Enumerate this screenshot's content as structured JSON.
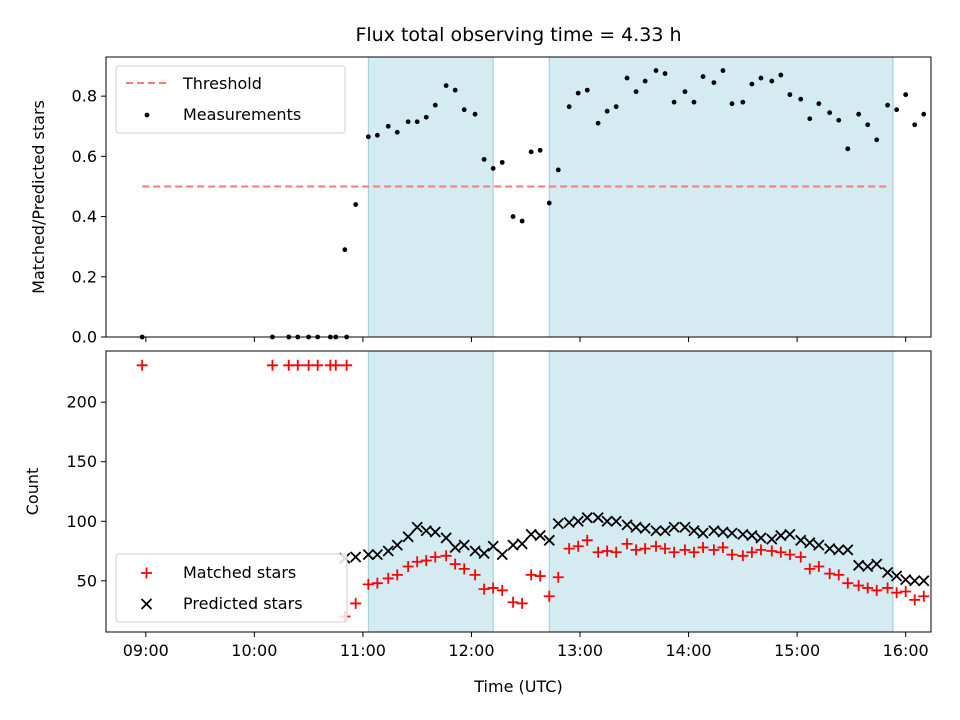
{
  "chart_data": [
    {
      "type": "scatter",
      "title": "Flux total observing time = 4.33 h",
      "ylabel": "Matched/Predicted stars",
      "xlim": [
        "08:38",
        "16:14"
      ],
      "ylim": [
        0,
        0.93
      ],
      "xticks": [
        "09:00",
        "10:00",
        "11:00",
        "12:00",
        "13:00",
        "14:00",
        "15:00",
        "16:00"
      ],
      "yticks": [
        "0.0",
        "0.2",
        "0.4",
        "0.6",
        "0.8"
      ],
      "legend": {
        "position": "top-left",
        "entries": [
          "Threshold",
          "Measurements"
        ]
      },
      "threshold": {
        "name": "Threshold",
        "y": 0.5,
        "x_range": [
          "08:58",
          "15:50"
        ],
        "color": "#f87a7a"
      },
      "shaded_intervals": [
        [
          "11:03",
          "12:12"
        ],
        [
          "12:43",
          "15:53"
        ]
      ],
      "series": [
        {
          "name": "Measurements",
          "color": "#000000",
          "points": [
            [
              "08:58",
              0.0
            ],
            [
              "10:10",
              0.0
            ],
            [
              "10:19",
              0.0
            ],
            [
              "10:24",
              0.0
            ],
            [
              "10:30",
              0.0
            ],
            [
              "10:35",
              0.0
            ],
            [
              "10:42",
              0.0
            ],
            [
              "10:45",
              0.0
            ],
            [
              "10:51",
              0.0
            ],
            [
              "10:50",
              0.29
            ],
            [
              "10:56",
              0.44
            ],
            [
              "11:03",
              0.665
            ],
            [
              "11:08",
              0.67
            ],
            [
              "11:14",
              0.7
            ],
            [
              "11:19",
              0.68
            ],
            [
              "11:25",
              0.715
            ],
            [
              "11:30",
              0.715
            ],
            [
              "11:35",
              0.73
            ],
            [
              "11:40",
              0.77
            ],
            [
              "11:46",
              0.835
            ],
            [
              "11:51",
              0.82
            ],
            [
              "11:56",
              0.755
            ],
            [
              "12:02",
              0.74
            ],
            [
              "12:07",
              0.59
            ],
            [
              "12:12",
              0.56
            ],
            [
              "12:17",
              0.58
            ],
            [
              "12:23",
              0.4
            ],
            [
              "12:28",
              0.385
            ],
            [
              "12:33",
              0.615
            ],
            [
              "12:38",
              0.62
            ],
            [
              "12:43",
              0.445
            ],
            [
              "12:48",
              0.555
            ],
            [
              "12:54",
              0.765
            ],
            [
              "12:59",
              0.81
            ],
            [
              "13:04",
              0.82
            ],
            [
              "13:10",
              0.71
            ],
            [
              "13:15",
              0.75
            ],
            [
              "13:20",
              0.765
            ],
            [
              "13:26",
              0.86
            ],
            [
              "13:31",
              0.815
            ],
            [
              "13:36",
              0.85
            ],
            [
              "13:42",
              0.885
            ],
            [
              "13:47",
              0.875
            ],
            [
              "13:52",
              0.78
            ],
            [
              "13:58",
              0.815
            ],
            [
              "14:03",
              0.78
            ],
            [
              "14:08",
              0.865
            ],
            [
              "14:14",
              0.845
            ],
            [
              "14:19",
              0.885
            ],
            [
              "14:24",
              0.775
            ],
            [
              "14:30",
              0.78
            ],
            [
              "14:35",
              0.84
            ],
            [
              "14:40",
              0.86
            ],
            [
              "14:46",
              0.85
            ],
            [
              "14:51",
              0.87
            ],
            [
              "14:56",
              0.805
            ],
            [
              "15:02",
              0.79
            ],
            [
              "15:07",
              0.725
            ],
            [
              "15:12",
              0.775
            ],
            [
              "15:18",
              0.745
            ],
            [
              "15:23",
              0.72
            ],
            [
              "15:28",
              0.625
            ],
            [
              "15:34",
              0.74
            ],
            [
              "15:39",
              0.705
            ],
            [
              "15:44",
              0.655
            ],
            [
              "15:50",
              0.77
            ],
            [
              "15:55",
              0.755
            ],
            [
              "16:00",
              0.805
            ],
            [
              "16:05",
              0.705
            ],
            [
              "16:10",
              0.74
            ]
          ]
        }
      ]
    },
    {
      "type": "scatter",
      "xlabel": "Time (UTC)",
      "ylabel": "Count",
      "xlim": [
        "08:38",
        "16:14"
      ],
      "ylim": [
        7,
        243
      ],
      "xticks": [
        "09:00",
        "10:00",
        "11:00",
        "12:00",
        "13:00",
        "14:00",
        "15:00",
        "16:00"
      ],
      "yticks": [
        "50",
        "100",
        "150",
        "200"
      ],
      "legend": {
        "position": "bottom-left",
        "entries": [
          "Matched stars",
          "Predicted stars"
        ]
      },
      "shaded_intervals": [
        [
          "11:03",
          "12:12"
        ],
        [
          "12:43",
          "15:53"
        ]
      ],
      "series": [
        {
          "name": "Matched stars",
          "marker": "plus",
          "color": "#ff0000",
          "points": [
            [
              "08:58",
              231
            ],
            [
              "10:10",
              231
            ],
            [
              "10:19",
              231
            ],
            [
              "10:24",
              231
            ],
            [
              "10:30",
              231
            ],
            [
              "10:35",
              231
            ],
            [
              "10:42",
              231
            ],
            [
              "10:45",
              231
            ],
            [
              "10:51",
              231
            ],
            [
              "10:50",
              20
            ],
            [
              "10:56",
              31
            ],
            [
              "11:03",
              47
            ],
            [
              "11:08",
              48
            ],
            [
              "11:14",
              52
            ],
            [
              "11:19",
              55
            ],
            [
              "11:25",
              62
            ],
            [
              "11:30",
              66
            ],
            [
              "11:35",
              67
            ],
            [
              "11:40",
              70
            ],
            [
              "11:46",
              71
            ],
            [
              "11:51",
              64
            ],
            [
              "11:56",
              60
            ],
            [
              "12:02",
              55
            ],
            [
              "12:07",
              43
            ],
            [
              "12:12",
              44
            ],
            [
              "12:17",
              42
            ],
            [
              "12:23",
              32
            ],
            [
              "12:28",
              31
            ],
            [
              "12:33",
              55
            ],
            [
              "12:38",
              54
            ],
            [
              "12:43",
              37
            ],
            [
              "12:48",
              53
            ],
            [
              "12:54",
              77
            ],
            [
              "12:59",
              79
            ],
            [
              "13:04",
              84
            ],
            [
              "13:10",
              74
            ],
            [
              "13:15",
              75
            ],
            [
              "13:20",
              74
            ],
            [
              "13:26",
              81
            ],
            [
              "13:31",
              76
            ],
            [
              "13:36",
              77
            ],
            [
              "13:42",
              79
            ],
            [
              "13:47",
              77
            ],
            [
              "13:52",
              74
            ],
            [
              "13:58",
              76
            ],
            [
              "14:03",
              74
            ],
            [
              "14:08",
              78
            ],
            [
              "14:14",
              76
            ],
            [
              "14:19",
              78
            ],
            [
              "14:24",
              72
            ],
            [
              "14:30",
              71
            ],
            [
              "14:35",
              74
            ],
            [
              "14:40",
              76
            ],
            [
              "14:46",
              75
            ],
            [
              "14:51",
              74
            ],
            [
              "14:56",
              72
            ],
            [
              "15:02",
              70
            ],
            [
              "15:07",
              60
            ],
            [
              "15:12",
              62
            ],
            [
              "15:18",
              56
            ],
            [
              "15:23",
              55
            ],
            [
              "15:28",
              48
            ],
            [
              "15:34",
              46
            ],
            [
              "15:39",
              44
            ],
            [
              "15:44",
              42
            ],
            [
              "15:50",
              44
            ],
            [
              "15:55",
              40
            ],
            [
              "16:00",
              41
            ],
            [
              "16:05",
              34
            ],
            [
              "16:10",
              37
            ]
          ]
        },
        {
          "name": "Predicted stars",
          "marker": "x",
          "color": "#000000",
          "points": [
            [
              "10:50",
              69
            ],
            [
              "10:56",
              70
            ],
            [
              "11:03",
              72
            ],
            [
              "11:08",
              72
            ],
            [
              "11:14",
              75
            ],
            [
              "11:19",
              80
            ],
            [
              "11:25",
              87
            ],
            [
              "11:30",
              95
            ],
            [
              "11:35",
              92
            ],
            [
              "11:40",
              91
            ],
            [
              "11:46",
              86
            ],
            [
              "11:51",
              78
            ],
            [
              "11:56",
              80
            ],
            [
              "12:02",
              75
            ],
            [
              "12:07",
              73
            ],
            [
              "12:12",
              79
            ],
            [
              "12:17",
              72
            ],
            [
              "12:23",
              80
            ],
            [
              "12:28",
              81
            ],
            [
              "12:33",
              89
            ],
            [
              "12:38",
              88
            ],
            [
              "12:43",
              84
            ],
            [
              "12:48",
              98
            ],
            [
              "12:54",
              99
            ],
            [
              "12:59",
              100
            ],
            [
              "13:04",
              103
            ],
            [
              "13:10",
              103
            ],
            [
              "13:15",
              100
            ],
            [
              "13:20",
              100
            ],
            [
              "13:26",
              97
            ],
            [
              "13:31",
              95
            ],
            [
              "13:36",
              94
            ],
            [
              "13:42",
              92
            ],
            [
              "13:47",
              92
            ],
            [
              "13:52",
              95
            ],
            [
              "13:58",
              95
            ],
            [
              "14:03",
              92
            ],
            [
              "14:08",
              90
            ],
            [
              "14:14",
              92
            ],
            [
              "14:19",
              91
            ],
            [
              "14:24",
              90
            ],
            [
              "14:30",
              89
            ],
            [
              "14:35",
              88
            ],
            [
              "14:40",
              86
            ],
            [
              "14:46",
              85
            ],
            [
              "14:51",
              88
            ],
            [
              "14:56",
              89
            ],
            [
              "15:02",
              84
            ],
            [
              "15:07",
              82
            ],
            [
              "15:12",
              80
            ],
            [
              "15:18",
              77
            ],
            [
              "15:23",
              76
            ],
            [
              "15:28",
              76
            ],
            [
              "15:34",
              63
            ],
            [
              "15:39",
              62
            ],
            [
              "15:44",
              64
            ],
            [
              "15:50",
              57
            ],
            [
              "15:55",
              54
            ],
            [
              "16:00",
              51
            ],
            [
              "16:05",
              50
            ],
            [
              "16:10",
              50
            ]
          ]
        }
      ]
    }
  ]
}
